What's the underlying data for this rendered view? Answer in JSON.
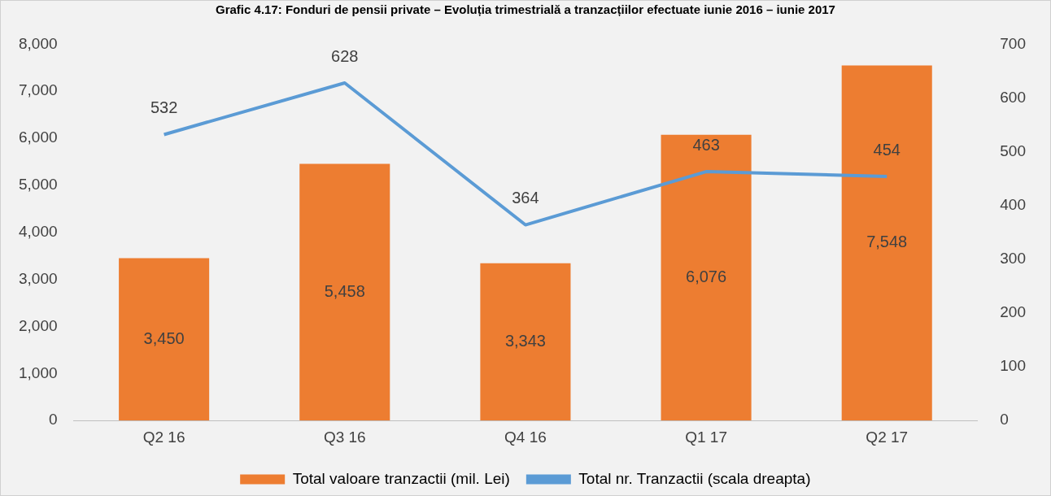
{
  "chart_data": {
    "type": "bar",
    "title": "Grafic 4.17: Fonduri de pensii private – Evoluția trimestrială a tranzacțiilor efectuate iunie 2016 – iunie 2017",
    "categories": [
      "Q2 16",
      "Q3 16",
      "Q4 16",
      "Q1 17",
      "Q2 17"
    ],
    "series": [
      {
        "name": "Total valoare tranzactii (mil. Lei)",
        "color": "#ed7d31",
        "values": [
          3450,
          5458,
          3343,
          6076,
          7548
        ],
        "value_labels": [
          "3,450",
          "5,458",
          "3,343",
          "6,076",
          "7,548"
        ]
      },
      {
        "name": "Total nr. Tranzactii (scala dreapta)",
        "type": "line",
        "axis": "y2",
        "color": "#5b9bd5",
        "values": [
          532,
          628,
          364,
          463,
          454
        ]
      }
    ],
    "ylim": [
      0,
      8000
    ],
    "yticks": [
      {
        "value": 0,
        "label": "0"
      },
      {
        "value": 1000,
        "label": "1,000"
      },
      {
        "value": 2000,
        "label": "2,000"
      },
      {
        "value": 3000,
        "label": "3,000"
      },
      {
        "value": 4000,
        "label": "4,000"
      },
      {
        "value": 5000,
        "label": "5,000"
      },
      {
        "value": 6000,
        "label": "6,000"
      },
      {
        "value": 7000,
        "label": "7,000"
      },
      {
        "value": 8000,
        "label": "8,000"
      }
    ],
    "y2lim": [
      0,
      700
    ],
    "y2ticks": [
      0,
      100,
      200,
      300,
      400,
      500,
      600,
      700
    ],
    "data_labels": true,
    "grid": false,
    "legend": "bottom",
    "marker": "none"
  }
}
